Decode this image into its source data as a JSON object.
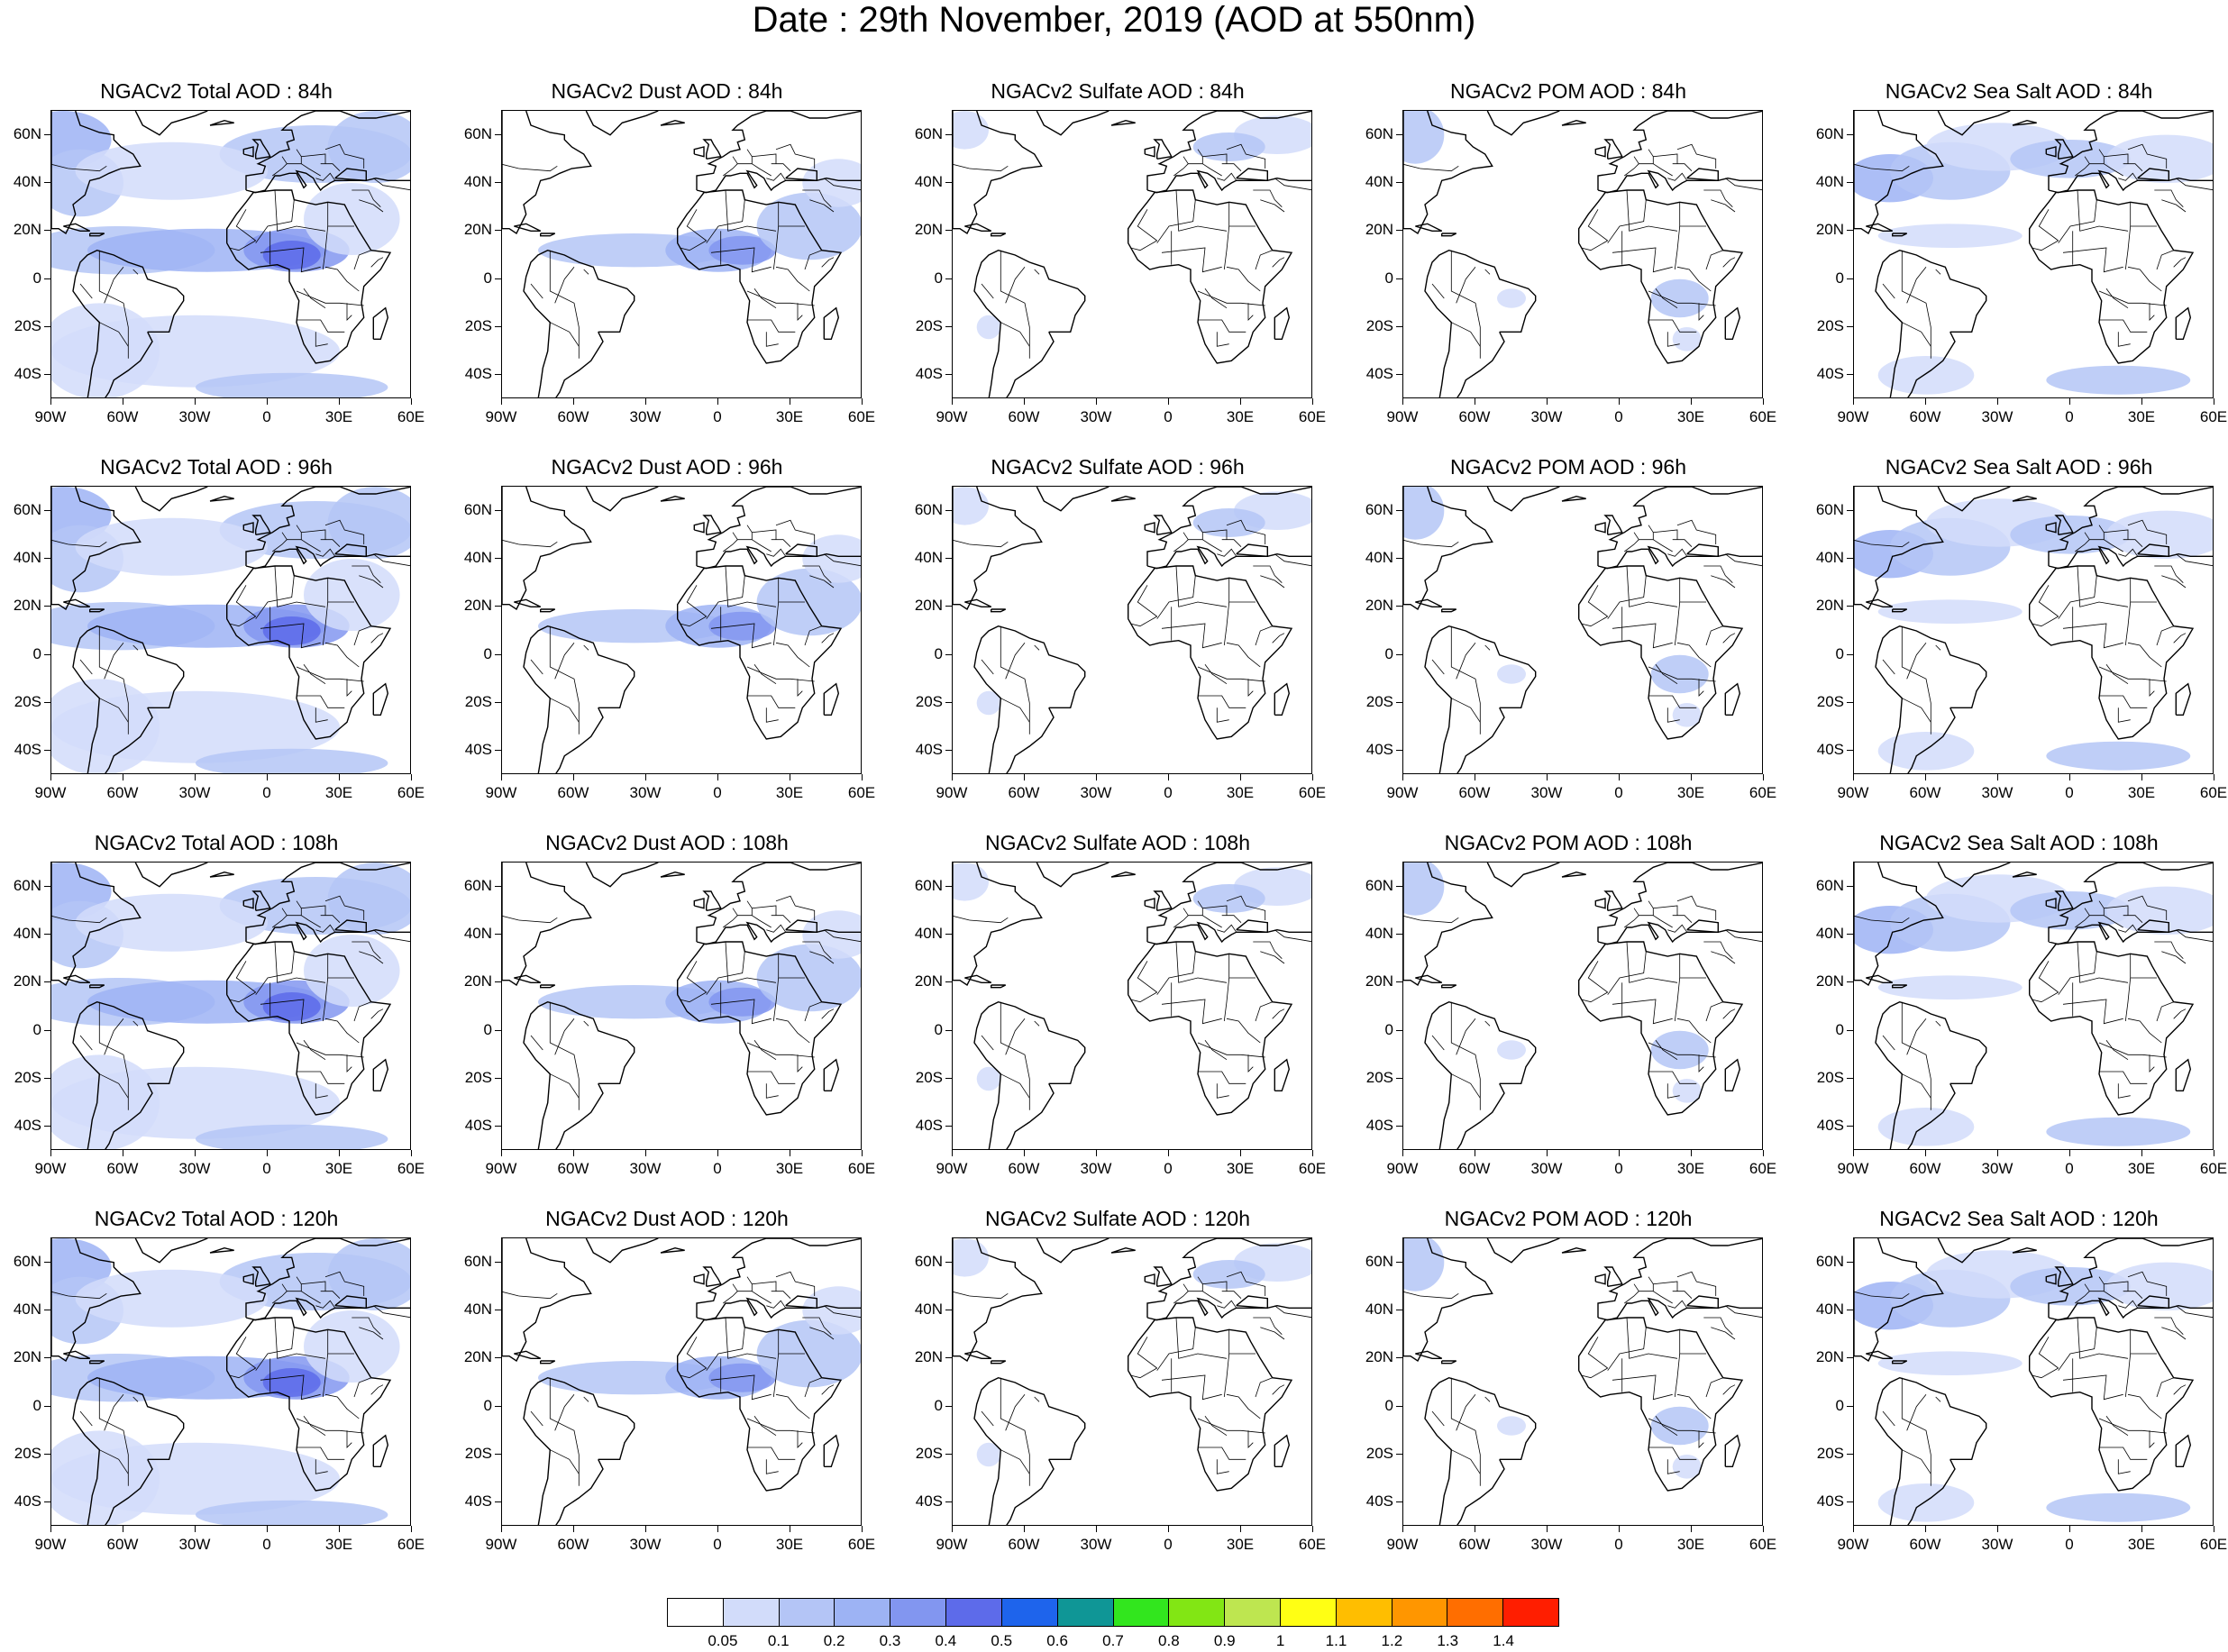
{
  "title": "Date : 29th November, 2019 (AOD at 550nm)",
  "panel_titles": [
    [
      "NGACv2 Total AOD : 84h",
      "NGACv2 Dust AOD : 84h",
      "NGACv2 Sulfate AOD : 84h",
      "NGACv2 POM AOD : 84h",
      "NGACv2 Sea Salt AOD : 84h"
    ],
    [
      "NGACv2 Total AOD : 96h",
      "NGACv2 Dust AOD : 96h",
      "NGACv2 Sulfate AOD : 96h",
      "NGACv2 POM AOD : 96h",
      "NGACv2 Sea Salt AOD : 96h"
    ],
    [
      "NGACv2 Total AOD : 108h",
      "NGACv2 Dust AOD : 108h",
      "NGACv2 Sulfate AOD : 108h",
      "NGACv2 POM AOD : 108h",
      "NGACv2 Sea Salt AOD : 108h"
    ],
    [
      "NGACv2 Total AOD : 120h",
      "NGACv2 Dust AOD : 120h",
      "NGACv2 Sulfate AOD : 120h",
      "NGACv2 POM AOD : 120h",
      "NGACv2 Sea Salt  AOD : 120h"
    ]
  ],
  "lat_labels": [
    "60N",
    "40N",
    "20N",
    "0",
    "20S",
    "40S"
  ],
  "lat_values": [
    60,
    40,
    20,
    0,
    -20,
    -40
  ],
  "lon_labels": [
    "90W",
    "60W",
    "30W",
    "0",
    "30E",
    "60E"
  ],
  "lon_values": [
    -90,
    -60,
    -30,
    0,
    30,
    60
  ],
  "map_extent": {
    "lon": [
      -90,
      60
    ],
    "lat": [
      -50,
      70
    ]
  },
  "colorbar": {
    "labels": [
      "0.05",
      "0.1",
      "0.2",
      "0.3",
      "0.4",
      "0.5",
      "0.6",
      "0.7",
      "0.8",
      "0.9",
      "1",
      "1.1",
      "1.2",
      "1.3",
      "1.4"
    ],
    "colors": [
      "#ffffff",
      "#d2dcfa",
      "#b4c5f6",
      "#9db3f4",
      "#8296f0",
      "#5d6bea",
      "#1e64ec",
      "#0f9696",
      "#32e61e",
      "#82e614",
      "#bee650",
      "#ffff14",
      "#ffbe00",
      "#ff9600",
      "#ff6e00",
      "#ff1e00"
    ]
  },
  "colors": {
    "land_outline": "#000000",
    "background": "#ffffff"
  }
}
